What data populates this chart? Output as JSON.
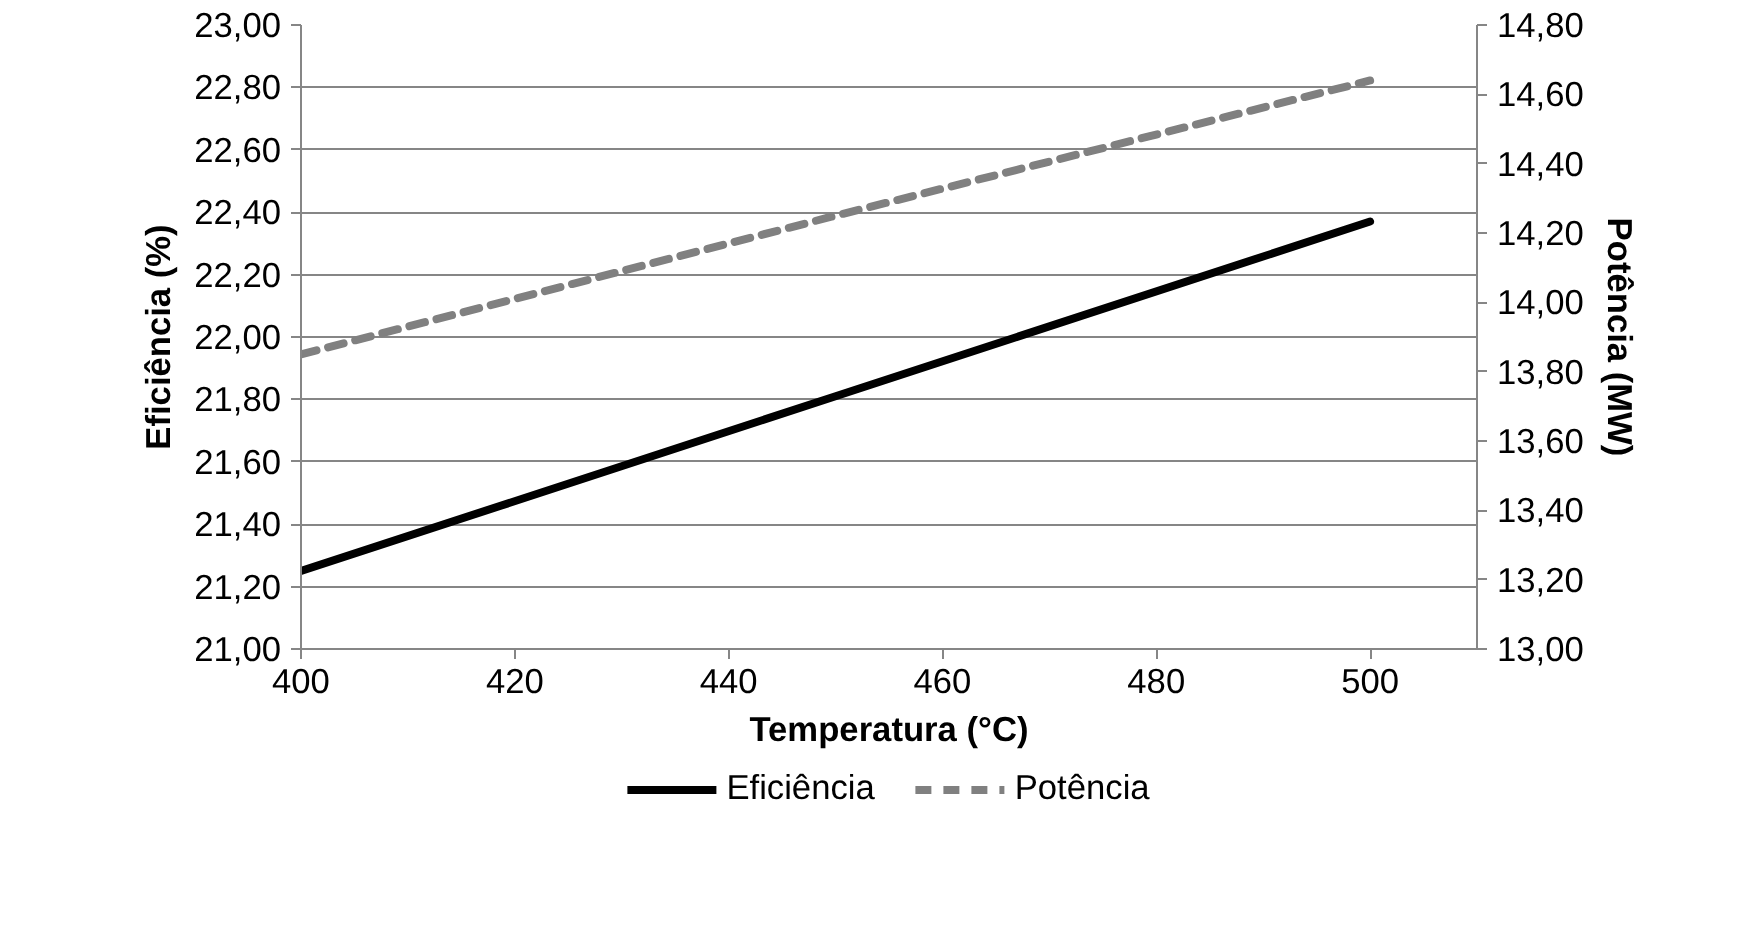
{
  "chart_data": {
    "type": "line",
    "xlabel": "Temperatura (°C)",
    "ylabel": "Eficiência (%)",
    "y2label": "Potência (MW)",
    "x": [
      400,
      450,
      500
    ],
    "series": [
      {
        "name": "Eficiência",
        "color": "#000000",
        "values": [
          21.25,
          21.81,
          22.37
        ],
        "line_style": "solid"
      },
      {
        "name": "Potência",
        "color": "#808080",
        "values": [
          13.85,
          14.25,
          14.64
        ],
        "line_style": "dashed",
        "axis": "y2"
      }
    ],
    "xlim": [
      400,
      510
    ],
    "xticks": [
      400,
      420,
      440,
      460,
      480,
      500
    ],
    "ylim": [
      21,
      23
    ],
    "yticks": [
      {
        "value": 21,
        "label": "21,00"
      },
      {
        "value": 21.2,
        "label": "21,20"
      },
      {
        "value": 21.4,
        "label": "21,40"
      },
      {
        "value": 21.6,
        "label": "21,60"
      },
      {
        "value": 21.8,
        "label": "21,80"
      },
      {
        "value": 22,
        "label": "22,00"
      },
      {
        "value": 22.2,
        "label": "22,20"
      },
      {
        "value": 22.4,
        "label": "22,40"
      },
      {
        "value": 22.6,
        "label": "22,60"
      },
      {
        "value": 22.8,
        "label": "22,80"
      },
      {
        "value": 23,
        "label": "23,00"
      }
    ],
    "y2lim": [
      13,
      14.8
    ],
    "y2ticks": [
      {
        "value": 13,
        "label": "13,00"
      },
      {
        "value": 13.2,
        "label": "13,20"
      },
      {
        "value": 13.4,
        "label": "13,40"
      },
      {
        "value": 13.6,
        "label": "13,60"
      },
      {
        "value": 13.8,
        "label": "13,80"
      },
      {
        "value": 14,
        "label": "14,00"
      },
      {
        "value": 14.2,
        "label": "14,20"
      },
      {
        "value": 14.4,
        "label": "14,40"
      },
      {
        "value": 14.6,
        "label": "14,60"
      },
      {
        "value": 14.8,
        "label": "14,80"
      }
    ],
    "grid": "y",
    "legend": "bottom",
    "marker": "none"
  }
}
